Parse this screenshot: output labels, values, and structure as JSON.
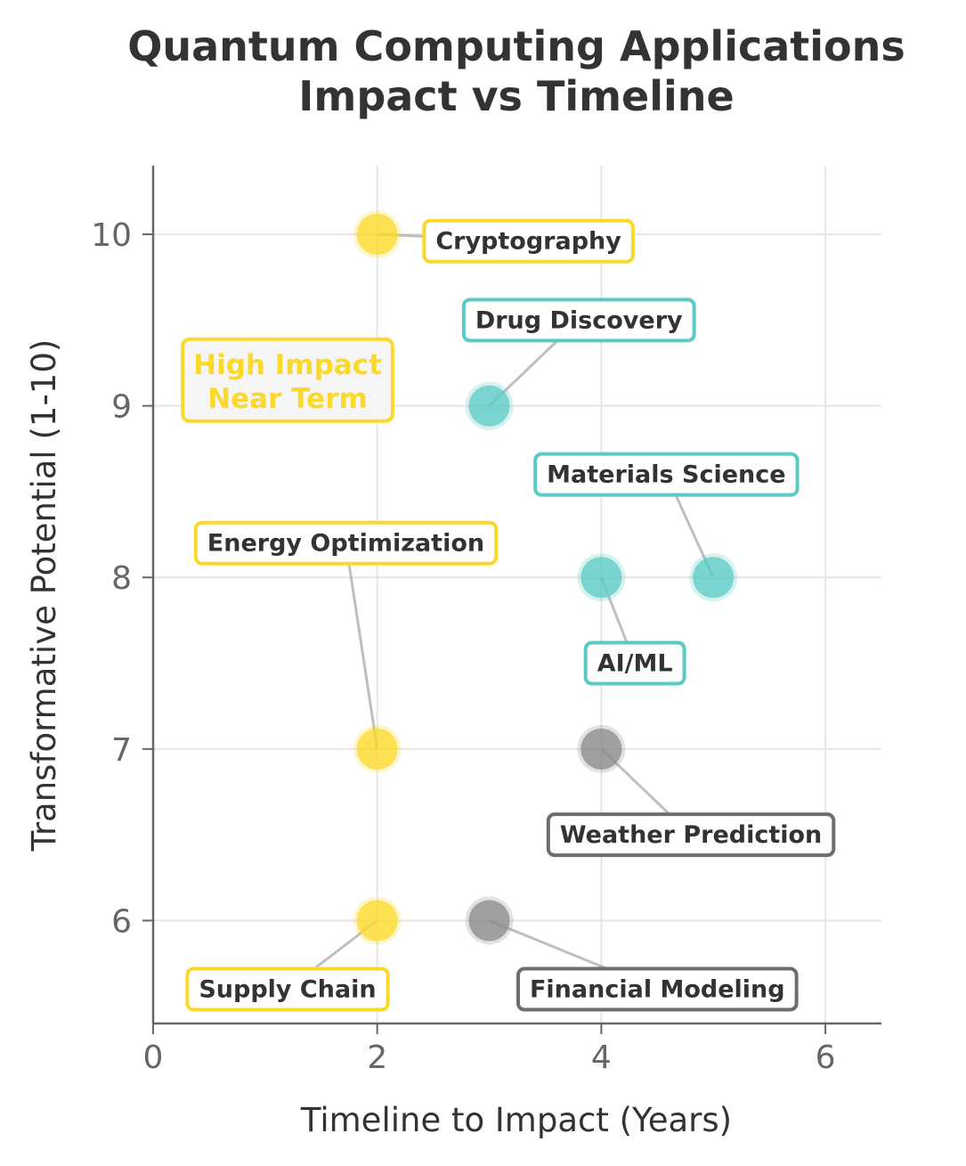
{
  "chart_data": {
    "type": "scatter",
    "title": [
      "Quantum Computing Applications",
      "Impact vs Timeline"
    ],
    "xlabel": "Timeline to Impact (Years)",
    "ylabel": "Transformative Potential (1-10)",
    "xlim": [
      0,
      6.5
    ],
    "ylim": [
      5.4,
      10.4
    ],
    "xticks": [
      0,
      2,
      4,
      6
    ],
    "yticks": [
      6,
      7,
      8,
      9,
      10
    ],
    "grid": true,
    "colors": {
      "near": "#FBD92B",
      "mid": "#5BC9C4",
      "far": "#6E6E6E",
      "grid": "#E6E6E6",
      "axis": "#666666",
      "leader": "#BFBFBF"
    },
    "points": [
      {
        "label": "Cryptography",
        "x": 2,
        "y": 10,
        "group": "near",
        "label_x": 3.35,
        "label_y": 9.96
      },
      {
        "label": "Drug Discovery",
        "x": 3,
        "y": 9,
        "group": "mid",
        "label_x": 3.8,
        "label_y": 9.5
      },
      {
        "label": "Materials Science",
        "x": 5,
        "y": 8,
        "group": "mid",
        "label_x": 4.58,
        "label_y": 8.6
      },
      {
        "label": "Energy Optimization",
        "x": 2,
        "y": 7,
        "group": "near",
        "label_x": 1.72,
        "label_y": 8.2
      },
      {
        "label": "AI/ML",
        "x": 4,
        "y": 8,
        "group": "mid",
        "label_x": 4.3,
        "label_y": 7.5
      },
      {
        "label": "Weather Prediction",
        "x": 4,
        "y": 7,
        "group": "far",
        "label_x": 4.8,
        "label_y": 6.5
      },
      {
        "label": "Supply Chain",
        "x": 2,
        "y": 6,
        "group": "near",
        "label_x": 1.2,
        "label_y": 5.6
      },
      {
        "label": "Financial Modeling",
        "x": 3,
        "y": 6,
        "group": "far",
        "label_x": 4.5,
        "label_y": 5.6
      }
    ],
    "annotations": [
      {
        "text": [
          "High Impact",
          "Near Term"
        ],
        "x": 1.2,
        "y": 9.15,
        "color_group": "near"
      }
    ]
  }
}
